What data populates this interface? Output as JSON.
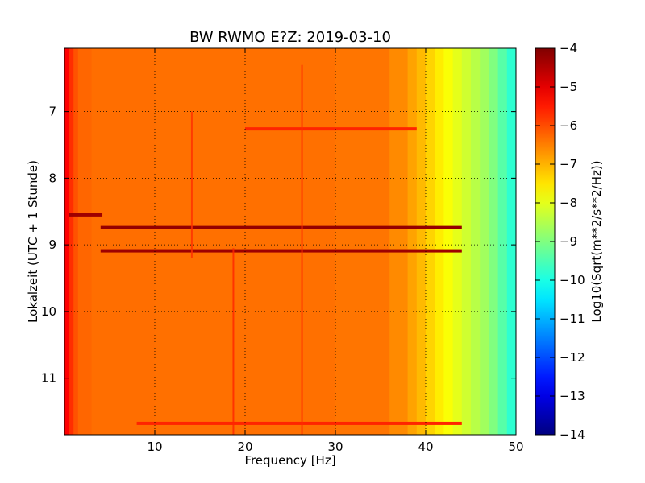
{
  "chart_data": {
    "type": "heatmap",
    "title": "BW RWMO E?Z: 2019-03-10",
    "xlabel": "Frequency [Hz]",
    "ylabel": "Lokalzeit (UTC + 1 Stunde)",
    "xlim": [
      0,
      50
    ],
    "ylim": [
      11.85,
      6.05
    ],
    "xticks": [
      10,
      20,
      30,
      40,
      50
    ],
    "yticks": [
      7,
      8,
      9,
      10,
      11
    ],
    "grid": true,
    "colorbar": {
      "label": "Log10(Sqrt(m**2/s**2/Hz))",
      "range": [
        -14,
        -4
      ],
      "ticks": [
        -4,
        -5,
        -6,
        -7,
        -8,
        -9,
        -10,
        -11,
        -12,
        -13,
        -14
      ],
      "colormap": "jet"
    },
    "frequency_profile": {
      "frequency_hz": [
        0,
        0.5,
        1.0,
        1.5,
        3,
        10,
        30,
        36,
        38,
        39,
        40,
        41,
        42,
        43,
        44,
        45,
        46,
        47,
        48,
        49,
        50
      ],
      "value": [
        -5.0,
        -5.5,
        -5.9,
        -6.2,
        -6.3,
        -6.35,
        -6.35,
        -6.45,
        -6.75,
        -6.95,
        -7.2,
        -7.45,
        -7.7,
        -7.9,
        -8.1,
        -8.35,
        -8.55,
        -8.8,
        -9.2,
        -9.6,
        -10.0
      ]
    },
    "features": [
      {
        "type": "horizontal_band",
        "time": 8.55,
        "f_from": 0.5,
        "f_to": 4.2,
        "value": -4.3
      },
      {
        "type": "horizontal_band",
        "time": 8.74,
        "f_from": 4,
        "f_to": 44,
        "value": -4.2
      },
      {
        "type": "horizontal_band",
        "time": 9.09,
        "f_from": 4,
        "f_to": 44,
        "value": -4.3
      },
      {
        "type": "horizontal_band",
        "time": 11.68,
        "f_from": 8,
        "f_to": 44,
        "value": -5.6
      },
      {
        "type": "horizontal_band",
        "time": 7.26,
        "f_from": 20,
        "f_to": 39,
        "value": -5.6
      },
      {
        "type": "vertical_line",
        "frequency": 18.7,
        "t_from": 9.05,
        "t_to": 11.85,
        "value": -5.6
      },
      {
        "type": "vertical_line",
        "frequency": 26.3,
        "t_from": 6.3,
        "t_to": 11.85,
        "value": -5.7
      },
      {
        "type": "vertical_line",
        "frequency": 14.1,
        "t_from": 7.0,
        "t_to": 9.2,
        "value": -5.7
      }
    ],
    "colors": {
      "background": "#ffffff",
      "axes": "#000000",
      "grid": "#000000"
    }
  }
}
